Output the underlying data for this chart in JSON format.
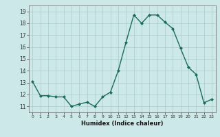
{
  "x": [
    0,
    1,
    2,
    3,
    4,
    5,
    6,
    7,
    8,
    9,
    10,
    11,
    12,
    13,
    14,
    15,
    16,
    17,
    18,
    19,
    20,
    21,
    22,
    23
  ],
  "y": [
    13.1,
    11.9,
    11.9,
    11.8,
    11.8,
    11.0,
    11.2,
    11.35,
    11.0,
    11.8,
    12.2,
    14.0,
    16.4,
    18.7,
    18.0,
    18.7,
    18.7,
    18.1,
    17.55,
    15.9,
    14.3,
    13.7,
    11.3,
    11.6
  ],
  "line_color": "#1a6b5a",
  "marker_color": "#1a6b5a",
  "bg_color": "#cce8e8",
  "grid_color": "#aacccc",
  "xlabel": "Humidex (Indice chaleur)",
  "ylim": [
    10.5,
    19.5
  ],
  "xlim": [
    -0.5,
    23.5
  ],
  "yticks": [
    11,
    12,
    13,
    14,
    15,
    16,
    17,
    18,
    19
  ],
  "xticks": [
    0,
    1,
    2,
    3,
    4,
    5,
    6,
    7,
    8,
    9,
    10,
    11,
    12,
    13,
    14,
    15,
    16,
    17,
    18,
    19,
    20,
    21,
    22,
    23
  ],
  "xtick_labels": [
    "0",
    "1",
    "2",
    "3",
    "4",
    "5",
    "6",
    "7",
    "8",
    "9",
    "10",
    "11",
    "12",
    "13",
    "14",
    "15",
    "16",
    "17",
    "18",
    "19",
    "20",
    "21",
    "22",
    "23"
  ],
  "linewidth": 1.0,
  "markersize": 2.2
}
